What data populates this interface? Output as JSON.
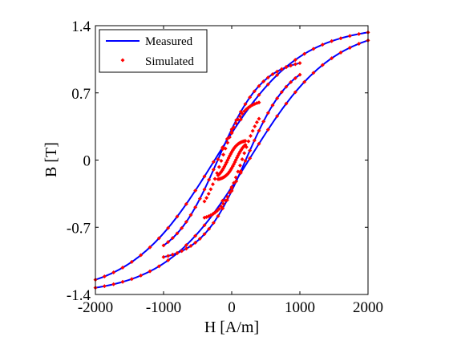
{
  "chart_data": {
    "type": "line",
    "xlabel": "H [A/m]",
    "ylabel": "B [T]",
    "xlim": [
      -2000,
      2000
    ],
    "ylim": [
      -1.4,
      1.4
    ],
    "x_ticks": [
      -2000,
      -1000,
      0,
      1000,
      2000
    ],
    "x_tick_labels": [
      "-2000",
      "-1000",
      "0",
      "1000",
      "2000"
    ],
    "y_ticks": [
      -1.4,
      -0.7,
      0,
      0.7,
      1.4
    ],
    "y_tick_labels": [
      "-1.4",
      "-0.7",
      "0",
      "0.7",
      "1.4"
    ],
    "grid": false,
    "legend_position": "top-left",
    "colors": {
      "measured": "#0000ff",
      "simulated": "#ff0000"
    },
    "series": [
      {
        "name": "Measured",
        "style": "line",
        "loops": [
          {
            "Hmax": 2000,
            "Bmax": 1.33,
            "Hc": 250
          },
          {
            "Hmax": 1000,
            "Bmax": 1.01,
            "Hc": 205
          }
        ]
      },
      {
        "name": "Simulated",
        "style": "markers",
        "loops": [
          {
            "Hmax": 2000,
            "Bmax": 1.33,
            "Hc": 250
          },
          {
            "Hmax": 1000,
            "Bmax": 1.01,
            "Hc": 205
          },
          {
            "Hmax": 400,
            "Bmax": 0.6,
            "Hc": 150
          },
          {
            "Hmax": 200,
            "Bmax": 0.2,
            "Hc": 60
          }
        ]
      }
    ]
  }
}
